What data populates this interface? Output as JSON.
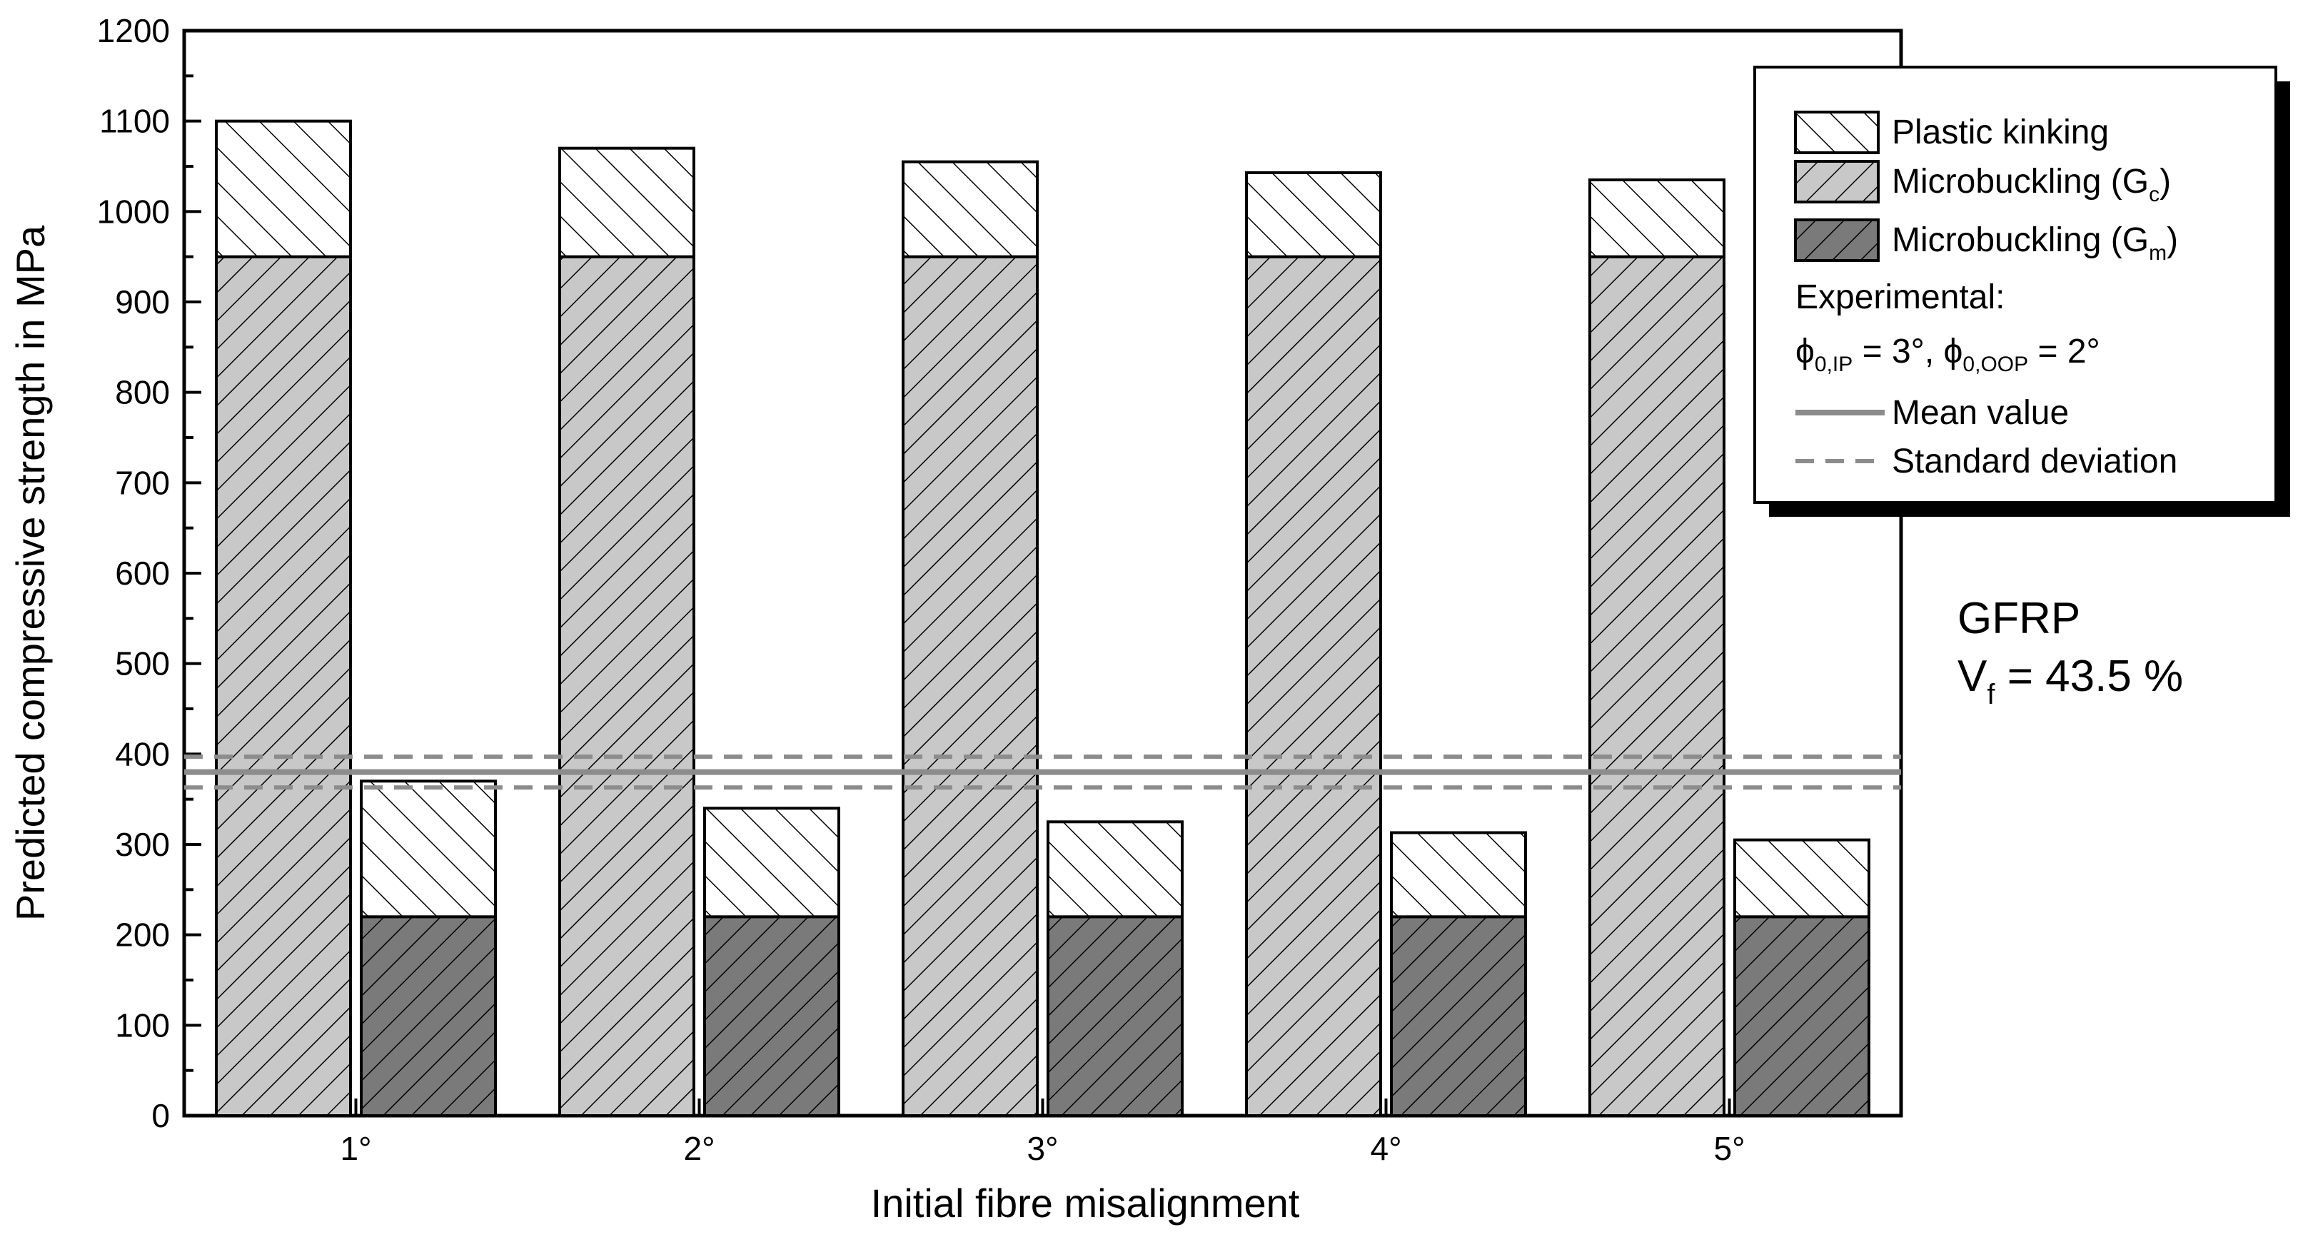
{
  "chart_data": {
    "type": "bar",
    "stacked": true,
    "xlabel": "Initial fibre misalignment",
    "ylabel": "Predicted compressive strength in MPa",
    "ylim": [
      0,
      1200
    ],
    "y_ticks": [
      0,
      100,
      200,
      300,
      400,
      500,
      600,
      700,
      800,
      900,
      1000,
      1100,
      1200
    ],
    "categories": [
      "1°",
      "2°",
      "3°",
      "4°",
      "5°"
    ],
    "groups": [
      {
        "name": "Microbuckling (Gc)",
        "base": "Microbuckling (G",
        "sub": "c",
        "close": ")",
        "totals": [
          1100,
          1070,
          1055,
          1043,
          1035
        ],
        "microbuckling": [
          950,
          950,
          950,
          950,
          950
        ],
        "plastic_kinking": [
          150,
          120,
          105,
          93,
          85
        ]
      },
      {
        "name": "Microbuckling (Gm)",
        "base": "Microbuckling (G",
        "sub": "m",
        "close": ")",
        "totals": [
          370,
          340,
          325,
          313,
          305
        ],
        "microbuckling": [
          220,
          220,
          220,
          220,
          220
        ],
        "plastic_kinking": [
          150,
          120,
          105,
          93,
          85
        ]
      }
    ],
    "experimental": {
      "mean": 380,
      "std_upper": 397,
      "std_lower": 363
    },
    "legend": {
      "position": "top-right",
      "plastic_kinking": "Plastic kinking",
      "experimental_label": "Experimental:",
      "phi_line": {
        "phi": "ϕ",
        "sub1": "0,IP",
        "mid": " = 3°, ",
        "sub2": "0,OOP",
        "end": " = 2°"
      },
      "mean_label": "Mean value",
      "std_label": "Standard deviation"
    },
    "annotation": {
      "line1": "GFRP",
      "v": "V",
      "v_sub": "f",
      "v_rest": " = 43.5 %"
    },
    "grid": false
  },
  "colors": {
    "microbuckling_gc_fill": "#c8c8c8",
    "microbuckling_gm_fill": "#7a7a7a",
    "plastic_kinking_fill": "#ffffff",
    "mean_line": "#8c8c8c",
    "std_line": "#8c8c8c"
  }
}
